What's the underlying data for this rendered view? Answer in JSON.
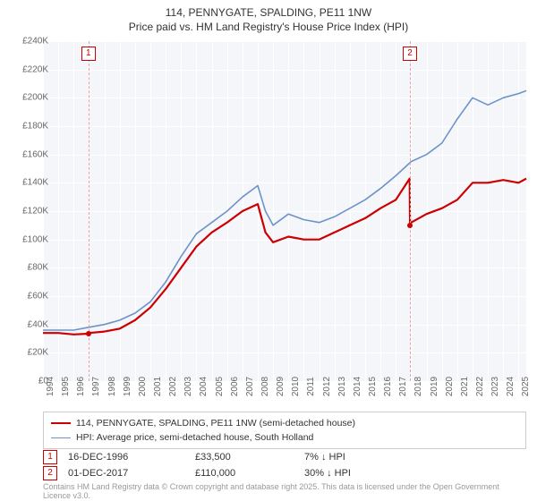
{
  "title_line1": "114, PENNYGATE, SPALDING, PE11 1NW",
  "title_line2": "Price paid vs. HM Land Registry's House Price Index (HPI)",
  "chart": {
    "type": "line",
    "background_color": "#f4f6fa",
    "grid_color": "#ffffff",
    "axis_text_color": "#666666",
    "x_years": [
      1994,
      1995,
      1996,
      1997,
      1998,
      1999,
      2000,
      2001,
      2002,
      2003,
      2004,
      2005,
      2006,
      2007,
      2008,
      2009,
      2010,
      2011,
      2012,
      2013,
      2014,
      2015,
      2016,
      2017,
      2018,
      2019,
      2020,
      2021,
      2022,
      2023,
      2024,
      2025
    ],
    "y_ticks": [
      0,
      20000,
      40000,
      60000,
      80000,
      100000,
      120000,
      140000,
      160000,
      180000,
      200000,
      220000,
      240000
    ],
    "y_tick_labels": [
      "£0",
      "£20K",
      "£40K",
      "£60K",
      "£80K",
      "£100K",
      "£120K",
      "£140K",
      "£160K",
      "£180K",
      "£200K",
      "£220K",
      "£240K"
    ],
    "ylim": [
      0,
      240000
    ],
    "xlim": [
      1994,
      2025.5
    ],
    "series": [
      {
        "name": "price_paid",
        "label": "114, PENNYGATE, SPALDING, PE11 1NW (semi-detached house)",
        "color": "#cc0000",
        "line_width": 2.2,
        "data_x": [
          1994,
          1995,
          1996,
          1996.96,
          1997,
          1998,
          1999,
          2000,
          2001,
          2002,
          2003,
          2004,
          2005,
          2006,
          2007,
          2008,
          2008.5,
          2009,
          2010,
          2011,
          2012,
          2013,
          2014,
          2015,
          2016,
          2017,
          2017.9,
          2017.92,
          2018,
          2019,
          2020,
          2021,
          2022,
          2023,
          2024,
          2025,
          2025.5
        ],
        "data_y": [
          34000,
          34000,
          33000,
          33500,
          34000,
          35000,
          37000,
          43000,
          52000,
          65000,
          80000,
          95000,
          105000,
          112000,
          120000,
          125000,
          105000,
          98000,
          102000,
          100000,
          100000,
          105000,
          110000,
          115000,
          122000,
          128000,
          143000,
          110000,
          112000,
          118000,
          122000,
          128000,
          140000,
          140000,
          142000,
          140000,
          143000
        ]
      },
      {
        "name": "hpi",
        "label": "HPI: Average price, semi-detached house, South Holland",
        "color": "#6d93c8",
        "line_width": 1.6,
        "data_x": [
          1994,
          1995,
          1996,
          1997,
          1998,
          1999,
          2000,
          2001,
          2002,
          2003,
          2004,
          2005,
          2006,
          2007,
          2008,
          2008.5,
          2009,
          2010,
          2011,
          2012,
          2013,
          2014,
          2015,
          2016,
          2017,
          2018,
          2019,
          2020,
          2021,
          2022,
          2023,
          2024,
          2025,
          2025.5
        ],
        "data_y": [
          36000,
          36000,
          36000,
          38000,
          40000,
          43000,
          48000,
          56000,
          70000,
          88000,
          104000,
          112000,
          120000,
          130000,
          138000,
          120000,
          110000,
          118000,
          114000,
          112000,
          116000,
          122000,
          128000,
          136000,
          145000,
          155000,
          160000,
          168000,
          185000,
          200000,
          195000,
          200000,
          203000,
          205000
        ]
      }
    ],
    "markers": [
      {
        "id": "1",
        "x": 1996.96,
        "y": 33500,
        "line_color": "#e8a0a0",
        "box_border": "#cc0000",
        "box_text_color": "#cc0000",
        "date": "16-DEC-1996",
        "price": "£33,500",
        "pct": "7% ↓ HPI"
      },
      {
        "id": "2",
        "x": 2017.92,
        "y": 110000,
        "line_color": "#e8a0a0",
        "box_border": "#cc0000",
        "box_text_color": "#cc0000",
        "date": "01-DEC-2017",
        "price": "£110,000",
        "pct": "30% ↓ HPI"
      }
    ]
  },
  "legend": {
    "border_color": "#cccccc"
  },
  "attribution": "Contains HM Land Registry data © Crown copyright and database right 2025. This data is licensed under the Open Government Licence v3.0."
}
